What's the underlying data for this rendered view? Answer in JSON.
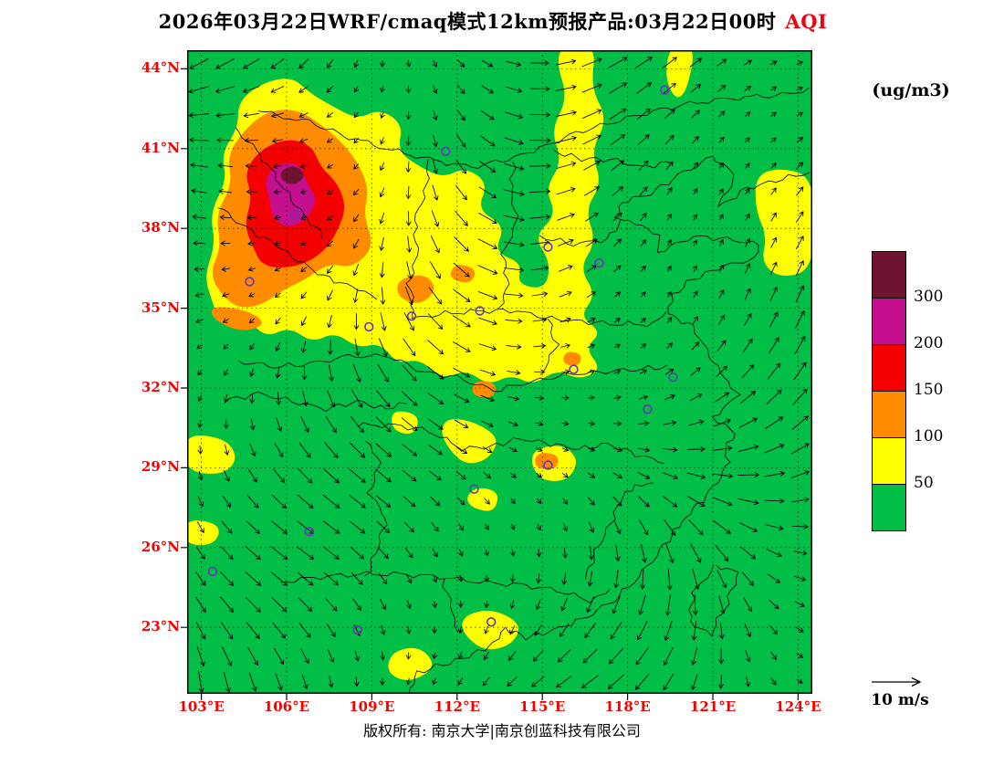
{
  "title": {
    "prefix": "2026年03月22日WRF/cmaq模式12km预报产品:03月22日00时",
    "variable": "AQI"
  },
  "units_label": "(ug/m3)",
  "wind_legend": {
    "speed_label": "10 m/s",
    "reference_speed_mps": 10
  },
  "copyright": "版权所有: 南京大学|南京创蓝科技有限公司",
  "axes": {
    "x": {
      "labels": [
        "103°E",
        "106°E",
        "109°E",
        "112°E",
        "115°E",
        "118°E",
        "121°E",
        "124°E"
      ],
      "values": [
        103,
        106,
        109,
        112,
        115,
        118,
        121,
        124
      ]
    },
    "y": {
      "labels": [
        "44°N",
        "41°N",
        "38°N",
        "35°N",
        "32°N",
        "29°N",
        "26°N",
        "23°N"
      ],
      "values": [
        44,
        41,
        38,
        35,
        32,
        29,
        26,
        23
      ]
    }
  },
  "colorbar": {
    "labels": [
      "300",
      "200",
      "150",
      "100",
      "50"
    ],
    "cells": [
      "maroon",
      "magenta",
      "red",
      "orange",
      "yellow",
      "green"
    ]
  },
  "chart_data": {
    "type": "heatmap",
    "variable": "AQI",
    "units": "ug/m3",
    "lon_range": [
      102.5,
      124.5
    ],
    "lat_range": [
      20.5,
      44.7
    ],
    "levels": [
      50,
      100,
      150,
      200,
      300
    ],
    "palette": {
      "green": "#00be46",
      "yellow": "#ffff00",
      "orange": "#ff8c00",
      "red": "#f40000",
      "magenta": "#c4108e",
      "maroon": "#6e1430",
      "station": "#6a35b8"
    },
    "regions": [
      {
        "level": "50-100",
        "color": "yellow",
        "points": [
          [
            103.4,
            35.2
          ],
          [
            103.1,
            36.2
          ],
          [
            103.5,
            37.4
          ],
          [
            103.3,
            38.6
          ],
          [
            103.9,
            39.8
          ],
          [
            103.7,
            40.8
          ],
          [
            104.3,
            41.8
          ],
          [
            104.3,
            42.8
          ],
          [
            105.2,
            43.5
          ],
          [
            106.2,
            43.7
          ],
          [
            106.8,
            43.1
          ],
          [
            107.6,
            42.6
          ],
          [
            108.5,
            42.1
          ],
          [
            109.3,
            42.5
          ],
          [
            110.1,
            41.9
          ],
          [
            109.9,
            40.9
          ],
          [
            110.7,
            40.3
          ],
          [
            111.5,
            39.9
          ],
          [
            112.3,
            40.3
          ],
          [
            113.1,
            39.7
          ],
          [
            112.7,
            38.7
          ],
          [
            113.7,
            38.1
          ],
          [
            113.3,
            37.1
          ],
          [
            114.3,
            36.7
          ],
          [
            114.1,
            35.9
          ],
          [
            115.1,
            35.7
          ],
          [
            115.3,
            36.7
          ],
          [
            114.7,
            37.7
          ],
          [
            115.5,
            38.5
          ],
          [
            115.1,
            39.5
          ],
          [
            115.7,
            40.5
          ],
          [
            115.3,
            41.7
          ],
          [
            115.9,
            42.9
          ],
          [
            115.5,
            44.2
          ],
          [
            115.7,
            44.9
          ],
          [
            116.9,
            44.9
          ],
          [
            116.7,
            43.3
          ],
          [
            117.3,
            42.1
          ],
          [
            116.7,
            40.9
          ],
          [
            117.1,
            39.7
          ],
          [
            116.5,
            38.7
          ],
          [
            116.9,
            37.5
          ],
          [
            116.3,
            36.5
          ],
          [
            116.9,
            35.5
          ],
          [
            116.3,
            34.7
          ],
          [
            117.1,
            34.1
          ],
          [
            116.5,
            33.5
          ],
          [
            117.1,
            32.7
          ],
          [
            116.3,
            32.3
          ],
          [
            115.5,
            32.7
          ],
          [
            114.7,
            32.1
          ],
          [
            113.9,
            32.5
          ],
          [
            113.1,
            32.1
          ],
          [
            112.3,
            32.7
          ],
          [
            111.5,
            32.3
          ],
          [
            110.7,
            33.1
          ],
          [
            109.9,
            32.9
          ],
          [
            109.3,
            33.7
          ],
          [
            108.5,
            33.5
          ],
          [
            107.7,
            34.1
          ],
          [
            106.9,
            33.7
          ],
          [
            106.1,
            34.3
          ],
          [
            105.3,
            33.9
          ],
          [
            104.7,
            34.5
          ],
          [
            104.1,
            34.2
          ],
          [
            103.6,
            34.6
          ]
        ]
      },
      {
        "level": "50-100",
        "color": "yellow",
        "points": [
          [
            122.5,
            40.0
          ],
          [
            123.4,
            40.3
          ],
          [
            124.6,
            39.9
          ],
          [
            124.6,
            36.5
          ],
          [
            123.4,
            36.1
          ],
          [
            122.7,
            36.7
          ],
          [
            122.9,
            37.7
          ],
          [
            122.5,
            38.7
          ]
        ]
      },
      {
        "level": "50-100",
        "color": "yellow",
        "points": [
          [
            119.5,
            44.9
          ],
          [
            120.4,
            44.9
          ],
          [
            120.1,
            43.2
          ],
          [
            119.7,
            42.8
          ],
          [
            119.3,
            43.7
          ]
        ]
      },
      {
        "level": "50-100",
        "color": "yellow",
        "points": [
          [
            111.7,
            30.9
          ],
          [
            112.7,
            30.7
          ],
          [
            113.5,
            30.1
          ],
          [
            113.1,
            29.3
          ],
          [
            112.3,
            29.1
          ],
          [
            111.7,
            29.7
          ],
          [
            111.4,
            30.4
          ]
        ]
      },
      {
        "level": "50-100",
        "color": "yellow",
        "points": [
          [
            114.7,
            29.7
          ],
          [
            115.7,
            29.9
          ],
          [
            116.3,
            29.3
          ],
          [
            115.9,
            28.5
          ],
          [
            115.0,
            28.5
          ],
          [
            114.6,
            29.1
          ]
        ]
      },
      {
        "level": "50-100",
        "color": "yellow",
        "points": [
          [
            112.7,
            28.3
          ],
          [
            113.5,
            28.1
          ],
          [
            113.3,
            27.3
          ],
          [
            112.5,
            27.5
          ],
          [
            112.3,
            27.9
          ]
        ]
      },
      {
        "level": "50-100",
        "color": "yellow",
        "points": [
          [
            109.7,
            31.2
          ],
          [
            110.7,
            31.0
          ],
          [
            110.5,
            30.2
          ],
          [
            109.7,
            30.4
          ]
        ]
      },
      {
        "level": "50-100",
        "color": "yellow",
        "points": [
          [
            112.3,
            23.5
          ],
          [
            113.3,
            23.7
          ],
          [
            114.3,
            23.1
          ],
          [
            113.9,
            22.3
          ],
          [
            112.9,
            22.1
          ],
          [
            112.1,
            22.9
          ]
        ]
      },
      {
        "level": "50-100",
        "color": "yellow",
        "points": [
          [
            102.4,
            30.3
          ],
          [
            103.9,
            30.1
          ],
          [
            104.3,
            29.3
          ],
          [
            103.7,
            28.7
          ],
          [
            102.4,
            28.9
          ]
        ]
      },
      {
        "level": "50-100",
        "color": "yellow",
        "points": [
          [
            102.4,
            27.1
          ],
          [
            103.7,
            26.9
          ],
          [
            103.5,
            26.1
          ],
          [
            102.4,
            26.1
          ]
        ]
      },
      {
        "level": "50-100",
        "color": "yellow",
        "points": [
          [
            109.7,
            22.1
          ],
          [
            110.7,
            22.3
          ],
          [
            111.3,
            21.5
          ],
          [
            110.3,
            20.9
          ],
          [
            109.5,
            21.3
          ]
        ]
      },
      {
        "level": "100-150",
        "color": "orange",
        "points": [
          [
            103.7,
            35.5
          ],
          [
            103.3,
            36.3
          ],
          [
            103.7,
            37.3
          ],
          [
            103.5,
            38.5
          ],
          [
            104.1,
            39.7
          ],
          [
            103.9,
            40.7
          ],
          [
            104.5,
            41.7
          ],
          [
            105.3,
            42.4
          ],
          [
            106.3,
            42.5
          ],
          [
            107.1,
            42.0
          ],
          [
            107.9,
            41.3
          ],
          [
            108.5,
            40.5
          ],
          [
            108.9,
            39.5
          ],
          [
            108.7,
            38.5
          ],
          [
            109.1,
            37.3
          ],
          [
            108.3,
            36.5
          ],
          [
            107.5,
            36.7
          ],
          [
            106.7,
            36.1
          ],
          [
            105.9,
            35.7
          ],
          [
            105.1,
            35.1
          ],
          [
            104.3,
            35.0
          ]
        ]
      },
      {
        "level": "100-150",
        "color": "orange",
        "points": [
          [
            103.5,
            35.1
          ],
          [
            104.7,
            34.9
          ],
          [
            105.3,
            34.4
          ],
          [
            104.5,
            34.1
          ],
          [
            103.7,
            34.4
          ],
          [
            103.3,
            34.8
          ]
        ]
      },
      {
        "level": "100-150",
        "color": "orange",
        "points": [
          [
            109.9,
            36.1
          ],
          [
            110.9,
            36.3
          ],
          [
            111.3,
            35.7
          ],
          [
            110.7,
            35.1
          ],
          [
            109.9,
            35.4
          ]
        ]
      },
      {
        "level": "100-150",
        "color": "orange",
        "points": [
          [
            111.9,
            36.7
          ],
          [
            112.7,
            36.5
          ],
          [
            112.5,
            35.9
          ],
          [
            111.7,
            36.1
          ]
        ]
      },
      {
        "level": "100-150",
        "color": "orange",
        "points": [
          [
            112.6,
            32.3
          ],
          [
            113.4,
            32.2
          ],
          [
            113.3,
            31.6
          ],
          [
            112.5,
            31.7
          ]
        ]
      },
      {
        "level": "100-150",
        "color": "orange",
        "points": [
          [
            114.8,
            29.6
          ],
          [
            115.6,
            29.5
          ],
          [
            115.5,
            28.9
          ],
          [
            114.7,
            29.0
          ]
        ]
      },
      {
        "level": "100-150",
        "color": "orange",
        "points": [
          [
            115.8,
            33.4
          ],
          [
            116.4,
            33.3
          ],
          [
            116.3,
            32.8
          ],
          [
            115.7,
            32.9
          ]
        ]
      },
      {
        "level": "150-200",
        "color": "red",
        "points": [
          [
            104.9,
            37.1
          ],
          [
            104.5,
            38.1
          ],
          [
            104.8,
            39.2
          ],
          [
            104.5,
            40.1
          ],
          [
            105.1,
            41.0
          ],
          [
            106.1,
            41.4
          ],
          [
            106.9,
            41.1
          ],
          [
            107.2,
            40.3
          ],
          [
            107.8,
            39.7
          ],
          [
            108.1,
            38.8
          ],
          [
            107.8,
            37.9
          ],
          [
            107.3,
            37.1
          ],
          [
            106.5,
            36.6
          ],
          [
            105.6,
            36.5
          ],
          [
            105.1,
            36.7
          ]
        ]
      },
      {
        "level": "200-300",
        "color": "magenta",
        "points": [
          [
            105.4,
            39.1
          ],
          [
            105.2,
            39.9
          ],
          [
            105.8,
            40.5
          ],
          [
            106.5,
            40.4
          ],
          [
            106.7,
            39.7
          ],
          [
            107.1,
            39.1
          ],
          [
            106.7,
            38.3
          ],
          [
            106.0,
            38.0
          ],
          [
            105.5,
            38.4
          ]
        ]
      },
      {
        "level": "300+",
        "color": "maroon",
        "points": [
          [
            105.8,
            40.2
          ],
          [
            106.3,
            40.4
          ],
          [
            106.7,
            40.0
          ],
          [
            106.3,
            39.6
          ],
          [
            105.8,
            39.8
          ]
        ]
      }
    ],
    "station_markers": [
      [
        119.3,
        43.2
      ],
      [
        111.6,
        40.9
      ],
      [
        106.3,
        38.5
      ],
      [
        104.7,
        36.0
      ],
      [
        115.2,
        37.3
      ],
      [
        117.0,
        36.7
      ],
      [
        108.9,
        34.3
      ],
      [
        112.8,
        34.9
      ],
      [
        110.4,
        34.7
      ],
      [
        116.1,
        32.7
      ],
      [
        119.6,
        32.4
      ],
      [
        118.7,
        31.2
      ],
      [
        115.2,
        29.1
      ],
      [
        112.6,
        28.2
      ],
      [
        106.8,
        26.6
      ],
      [
        103.4,
        25.1
      ],
      [
        108.5,
        22.9
      ],
      [
        113.2,
        23.2
      ]
    ],
    "wind_overlay": {
      "style": "arrows",
      "reference_label": "10 m/s"
    }
  }
}
